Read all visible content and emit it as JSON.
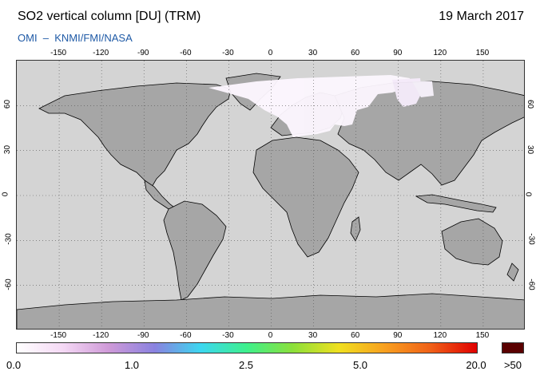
{
  "header": {
    "title": "SO2 vertical column [DU] (TRM)",
    "date": "19 March 2017",
    "credit": "OMI  –  KNMI/FMI/NASA"
  },
  "map": {
    "projection": "equirectangular",
    "x_ticks": [
      "-150",
      "-120",
      "-90",
      "-60",
      "-30",
      "0",
      "30",
      "60",
      "90",
      "120",
      "150"
    ],
    "y_ticks": [
      "60",
      "30",
      "0",
      "-30",
      "-60"
    ],
    "colors": {
      "ocean": "#d4d4d4",
      "land": "#a6a6a6",
      "no_data": "#a6a6a6",
      "coastline": "#000000",
      "graticule": "#555555"
    }
  },
  "colorbar": {
    "labels": [
      "0.0",
      "1.0",
      "2.5",
      "5.0",
      "20.0",
      ">50"
    ],
    "overflow_color": "#5a0000",
    "gradient_stops": [
      "#ffffff",
      "#f5d9f5",
      "#cf9ad8",
      "#8a82e0",
      "#3cd7f0",
      "#3ef08c",
      "#8ce03a",
      "#f0e020",
      "#f8a020",
      "#f06018",
      "#e00000"
    ]
  }
}
